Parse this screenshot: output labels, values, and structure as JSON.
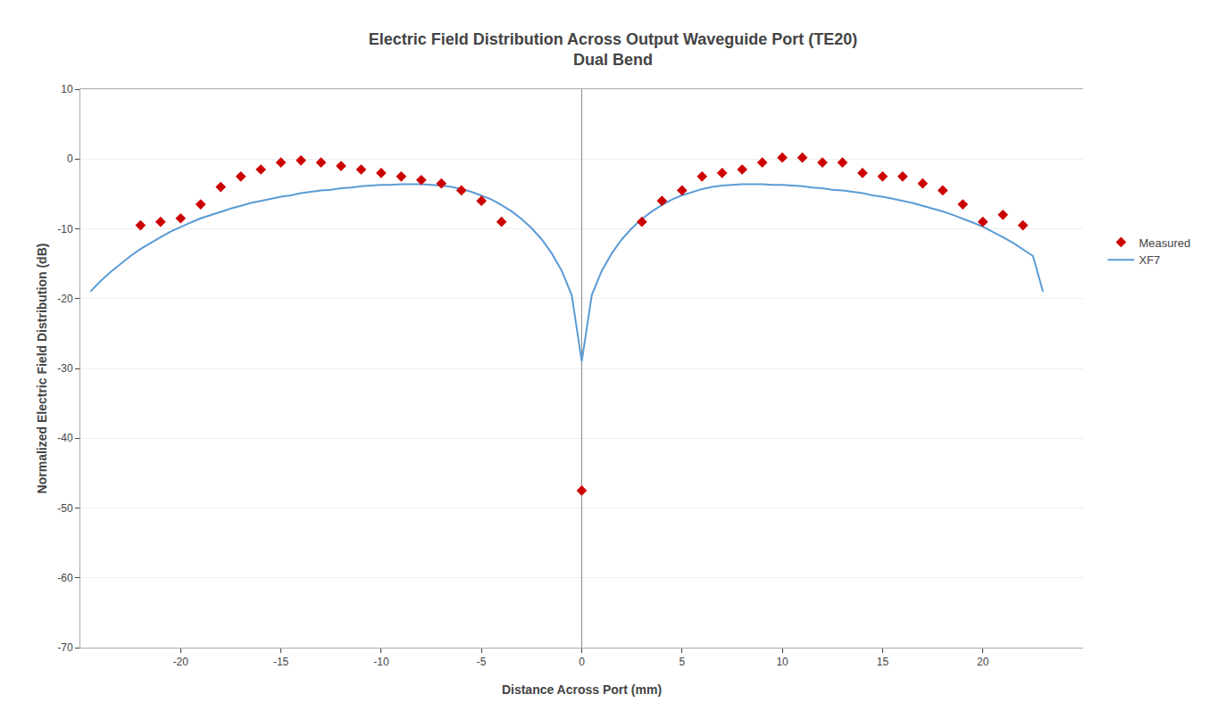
{
  "chart_data": {
    "type": "scatter",
    "title": "Electric Field Distribution Across Output Waveguide Port (TE20)",
    "subtitle": "Dual Bend",
    "x_label": "Distance Across Port (mm)",
    "y_label": "Normalized Electric Field Distribution (dB)",
    "xlim": [
      -25,
      25
    ],
    "ylim": [
      -70,
      10
    ],
    "xticks": [
      -20,
      -15,
      -10,
      -5,
      0,
      5,
      10,
      15,
      20
    ],
    "yticks": [
      10,
      0,
      -10,
      -20,
      -30,
      -40,
      -50,
      -60,
      -70
    ],
    "grid": "y",
    "legend": "right",
    "series": [
      {
        "name": "Measured",
        "type": "scatter",
        "marker": "diamond",
        "color": "#cc0000",
        "x": [
          -22.0,
          -21.0,
          -20.0,
          -19.0,
          -18.0,
          -17.0,
          -16.0,
          -15.0,
          -14.0,
          -13.0,
          -12.0,
          -11.0,
          -10.0,
          -9.0,
          -8.0,
          -7.0,
          -6.0,
          -5.0,
          -4.0,
          0.0,
          3.0,
          4.0,
          5.0,
          6.0,
          7.0,
          8.0,
          9.0,
          10.0,
          11.0,
          12.0,
          13.0,
          14.0,
          15.0,
          16.0,
          17.0,
          18.0,
          19.0,
          20.0,
          21.0,
          22.0
        ],
        "values": [
          -9.5,
          -9.0,
          -8.5,
          -6.5,
          -4.0,
          -2.5,
          -1.5,
          -0.5,
          -0.2,
          -0.5,
          -1.0,
          -1.5,
          -2.0,
          -2.5,
          -3.0,
          -3.5,
          -4.5,
          -6.0,
          -9.0,
          -47.5,
          -9.0,
          -6.0,
          -4.5,
          -2.5,
          -2.0,
          -1.5,
          -0.5,
          0.2,
          0.2,
          -0.5,
          -0.5,
          -2.0,
          -2.5,
          -2.5,
          -3.5,
          -4.5,
          -6.5,
          -9.0,
          -8.0,
          -9.5
        ]
      },
      {
        "name": "XF7",
        "type": "line",
        "line_style": "solid",
        "color": "#5b9bd5",
        "x": [
          -24.5,
          -24.0,
          -23.5,
          -23.0,
          -22.5,
          -22.0,
          -21.5,
          -21.0,
          -20.5,
          -20.0,
          -19.5,
          -19.0,
          -18.5,
          -18.0,
          -17.5,
          -17.0,
          -16.5,
          -16.0,
          -15.5,
          -15.0,
          -14.5,
          -14.0,
          -13.5,
          -13.0,
          -12.5,
          -12.0,
          -11.5,
          -11.0,
          -10.5,
          -10.0,
          -9.5,
          -9.0,
          -8.5,
          -8.0,
          -7.5,
          -7.0,
          -6.5,
          -6.0,
          -5.5,
          -5.0,
          -4.5,
          -4.0,
          -3.5,
          -3.0,
          -2.5,
          -2.0,
          -1.5,
          -1.0,
          -0.5,
          0.0,
          0.5,
          1.0,
          1.5,
          2.0,
          2.5,
          3.0,
          3.5,
          4.0,
          4.5,
          5.0,
          5.5,
          6.0,
          6.5,
          7.0,
          7.5,
          8.0,
          8.5,
          9.0,
          9.5,
          10.0,
          10.5,
          11.0,
          11.5,
          12.0,
          12.5,
          13.0,
          13.5,
          14.0,
          14.5,
          15.0,
          15.5,
          16.0,
          16.5,
          17.0,
          17.5,
          18.0,
          18.5,
          19.0,
          19.5,
          20.0,
          20.5,
          21.0,
          21.5,
          22.0,
          22.5,
          23.0
        ],
        "values": [
          -19.0,
          -17.5,
          -16.2,
          -15.0,
          -13.9,
          -12.9,
          -12.0,
          -11.2,
          -10.4,
          -9.7,
          -9.1,
          -8.5,
          -8.0,
          -7.5,
          -7.1,
          -6.7,
          -6.3,
          -6.0,
          -5.7,
          -5.4,
          -5.2,
          -4.9,
          -4.7,
          -4.5,
          -4.4,
          -4.2,
          -4.1,
          -3.9,
          -3.8,
          -3.7,
          -3.7,
          -3.6,
          -3.6,
          -3.6,
          -3.7,
          -3.8,
          -4.0,
          -4.3,
          -4.7,
          -5.2,
          -5.8,
          -6.6,
          -7.5,
          -8.6,
          -9.9,
          -11.5,
          -13.5,
          -16.0,
          -19.5,
          -29.0,
          -19.5,
          -16.0,
          -13.5,
          -11.5,
          -9.9,
          -8.6,
          -7.5,
          -6.6,
          -5.8,
          -5.2,
          -4.7,
          -4.3,
          -4.0,
          -3.8,
          -3.7,
          -3.6,
          -3.6,
          -3.6,
          -3.7,
          -3.7,
          -3.8,
          -3.9,
          -4.1,
          -4.2,
          -4.4,
          -4.5,
          -4.7,
          -4.9,
          -5.2,
          -5.4,
          -5.7,
          -6.0,
          -6.3,
          -6.7,
          -7.1,
          -7.5,
          -8.0,
          -8.5,
          -9.1,
          -9.7,
          -10.4,
          -11.2,
          -12.0,
          -12.9,
          -13.9,
          -19.0
        ]
      }
    ]
  }
}
